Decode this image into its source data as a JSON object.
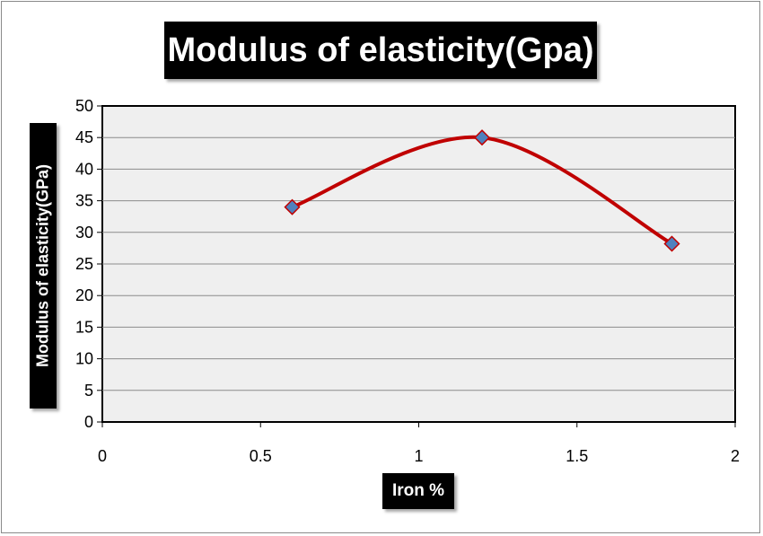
{
  "chart_data": {
    "type": "line",
    "title": "Modulus of elasticity(Gpa)",
    "xlabel": "Iron %",
    "ylabel": "Modulus of elasticity(GPa)",
    "xlim": [
      0,
      2
    ],
    "ylim": [
      0,
      50
    ],
    "x_ticks": [
      "0",
      "0.5",
      "1",
      "1.5",
      "2"
    ],
    "y_ticks": [
      "0",
      "5",
      "10",
      "15",
      "20",
      "25",
      "30",
      "35",
      "40",
      "45",
      "50"
    ],
    "grid": "horizontal",
    "legend": "none",
    "smooth": true,
    "series": [
      {
        "x": [
          0.6,
          1.2,
          1.8
        ],
        "y": [
          34,
          45,
          28.2
        ],
        "line_color": "#c00000",
        "marker": "diamond",
        "marker_color": "#4f81bd"
      }
    ],
    "plot_background": "#efefef"
  }
}
